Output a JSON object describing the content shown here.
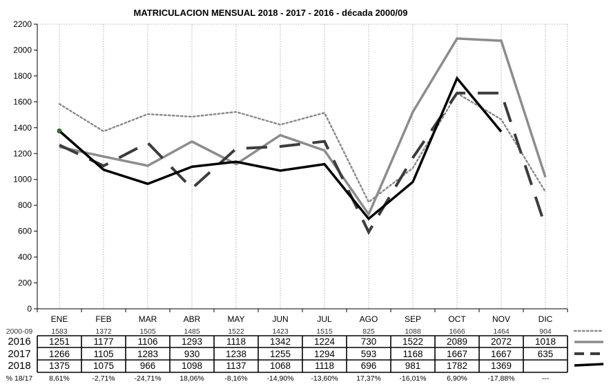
{
  "chart_data": {
    "type": "line",
    "title": "MATRICULACION MENSUAL  2018 - 2017 - 2016 - década 2000/09",
    "categories": [
      "ENE",
      "FEB",
      "MAR",
      "ABR",
      "MAY",
      "JUN",
      "JUL",
      "AGO",
      "SEP",
      "OCT",
      "NOV",
      "DIC"
    ],
    "y_ticks": [
      "0",
      "200",
      "400",
      "600",
      "800",
      "1000",
      "1200",
      "1400",
      "1600",
      "1800",
      "2000",
      "2200"
    ],
    "ylim": [
      0,
      2200
    ],
    "grid": "vertical dotted lines at each month",
    "series": [
      {
        "name": "2000-09",
        "color": "#8a8a8a",
        "style": "dotted",
        "values": [
          1583,
          1372,
          1505,
          1485,
          1522,
          1423,
          1515,
          825,
          1088,
          1666,
          1464,
          904
        ]
      },
      {
        "name": "2016",
        "color": "#8c8c8c",
        "style": "solid",
        "values": [
          1251,
          1177,
          1106,
          1293,
          1118,
          1342,
          1224,
          730,
          1522,
          2089,
          2072,
          1018
        ]
      },
      {
        "name": "2017",
        "color": "#3c3c3c",
        "style": "dashed",
        "values": [
          1266,
          1105,
          1283,
          930,
          1238,
          1255,
          1294,
          593,
          1168,
          1667,
          1667,
          635
        ]
      },
      {
        "name": "2018",
        "color": "#000000",
        "style": "solid",
        "values": [
          1375,
          1075,
          966,
          1098,
          1137,
          1068,
          1118,
          696,
          981,
          1782,
          1369,
          null
        ]
      }
    ],
    "table": {
      "row_2000_09": {
        "label": "2000-09",
        "cells": [
          "1583",
          "1372",
          "1505",
          "1485",
          "1522",
          "1423",
          "1515",
          "825",
          "1088",
          "1666",
          "1464",
          "904"
        ]
      },
      "row_2016": {
        "label": "2016",
        "cells": [
          "1251",
          "1177",
          "1106",
          "1293",
          "1118",
          "1342",
          "1224",
          "730",
          "1522",
          "2089",
          "2072",
          "1018"
        ]
      },
      "row_2017": {
        "label": "2017",
        "cells": [
          "1266",
          "1105",
          "1283",
          "930",
          "1238",
          "1255",
          "1294",
          "593",
          "1168",
          "1667",
          "1667",
          "635"
        ]
      },
      "row_2018": {
        "label": "2018",
        "cells": [
          "1375",
          "1075",
          "966",
          "1098",
          "1137",
          "1068",
          "1118",
          "696",
          "981",
          "1782",
          "1369",
          ""
        ]
      },
      "row_pct": {
        "label": "% 18/17",
        "cells": [
          "8,61%",
          "-2,71%",
          "-24,71%",
          "18,06%",
          "-8,16%",
          "-14,90%",
          "-13,60%",
          "17,37%",
          "-16,01%",
          "6,90%",
          "-17,88%",
          "---"
        ]
      }
    }
  }
}
